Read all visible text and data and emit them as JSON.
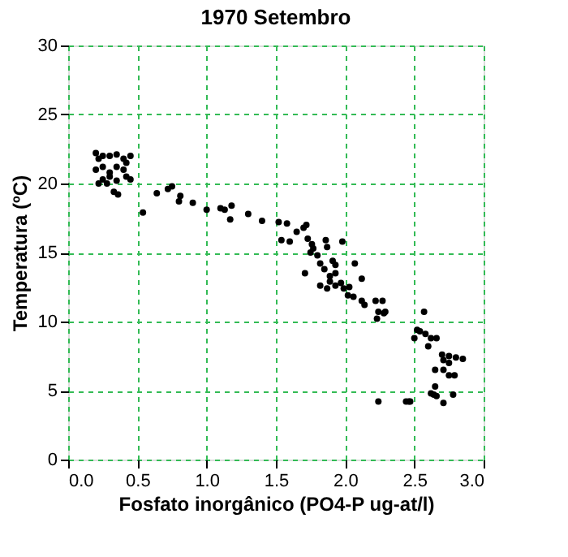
{
  "chart_data": {
    "type": "scatter",
    "title": "1970 Setembro",
    "xlabel": "Fosfato inorgânico (PO4-P ug-at/l)",
    "ylabel": "Temperatura (ºC)",
    "x": [
      0.2,
      0.22,
      0.25,
      0.3,
      0.35,
      0.4,
      0.45,
      0.2,
      0.25,
      0.3,
      0.35,
      0.4,
      0.42,
      0.25,
      0.3,
      0.35,
      0.45,
      0.22,
      0.33,
      0.28,
      0.42,
      0.36,
      0.54,
      0.64,
      0.72,
      0.75,
      0.81,
      0.8,
      0.9,
      1.0,
      1.1,
      1.13,
      1.18,
      1.17,
      1.3,
      1.4,
      1.52,
      1.54,
      1.58,
      1.6,
      1.65,
      1.7,
      1.72,
      1.73,
      1.76,
      1.77,
      1.75,
      1.8,
      1.86,
      1.87,
      1.98,
      1.71,
      1.82,
      1.85,
      1.91,
      1.93,
      1.93,
      1.89,
      1.82,
      1.89,
      1.93,
      1.99,
      2.03,
      2.07,
      2.12,
      2.02,
      2.06,
      2.12,
      2.14,
      2.22,
      2.27,
      2.24,
      2.28,
      2.29,
      1.87,
      1.97,
      2.23,
      2.57,
      2.52,
      2.54,
      2.58,
      2.62,
      2.66,
      2.5,
      2.6,
      2.7,
      2.75,
      2.8,
      2.85,
      2.71,
      2.75,
      2.65,
      2.71,
      2.75,
      2.79,
      2.65,
      2.62,
      2.64,
      2.66,
      2.71,
      2.78,
      2.24,
      2.44,
      2.46,
      2.47
    ],
    "values": [
      22.2,
      21.8,
      22.0,
      22.0,
      22.1,
      21.8,
      22.0,
      21.0,
      21.2,
      20.8,
      21.2,
      21.0,
      20.5,
      20.3,
      20.5,
      20.2,
      20.3,
      20.0,
      19.4,
      20.0,
      21.5,
      19.2,
      17.9,
      19.3,
      19.6,
      19.8,
      19.1,
      18.7,
      18.6,
      18.1,
      18.2,
      18.1,
      18.4,
      17.4,
      17.8,
      17.3,
      17.2,
      15.9,
      17.1,
      15.8,
      16.5,
      16.8,
      17.0,
      16.0,
      15.6,
      15.3,
      15.0,
      14.8,
      15.9,
      15.4,
      15.8,
      13.5,
      14.2,
      13.8,
      14.4,
      14.1,
      13.5,
      13.3,
      12.6,
      12.9,
      12.6,
      12.4,
      12.5,
      14.2,
      13.1,
      11.9,
      11.8,
      11.5,
      11.2,
      11.5,
      11.5,
      10.7,
      10.6,
      10.7,
      12.4,
      12.8,
      10.2,
      10.7,
      9.4,
      9.3,
      9.1,
      8.8,
      8.8,
      8.8,
      8.2,
      7.6,
      7.5,
      7.4,
      7.3,
      7.2,
      7.0,
      6.5,
      6.5,
      6.1,
      6.1,
      5.3,
      4.8,
      4.7,
      4.6,
      4.1,
      4.7,
      4.2,
      4.2,
      4.2,
      4.2
    ],
    "color": "#000000",
    "marker": "circle",
    "xlim": [
      0,
      3
    ],
    "xticks": [
      {
        "value": 0,
        "label": "0.0"
      },
      {
        "value": 0.5,
        "label": "0.5"
      },
      {
        "value": 1,
        "label": "1.0"
      },
      {
        "value": 1.5,
        "label": "1.5"
      },
      {
        "value": 2,
        "label": "2.0"
      },
      {
        "value": 2.5,
        "label": "2.5"
      },
      {
        "value": 3,
        "label": "3.0"
      }
    ],
    "ylim": [
      0,
      30
    ],
    "yticks": [
      0,
      5,
      10,
      15,
      20,
      25,
      30
    ],
    "grid": true
  }
}
